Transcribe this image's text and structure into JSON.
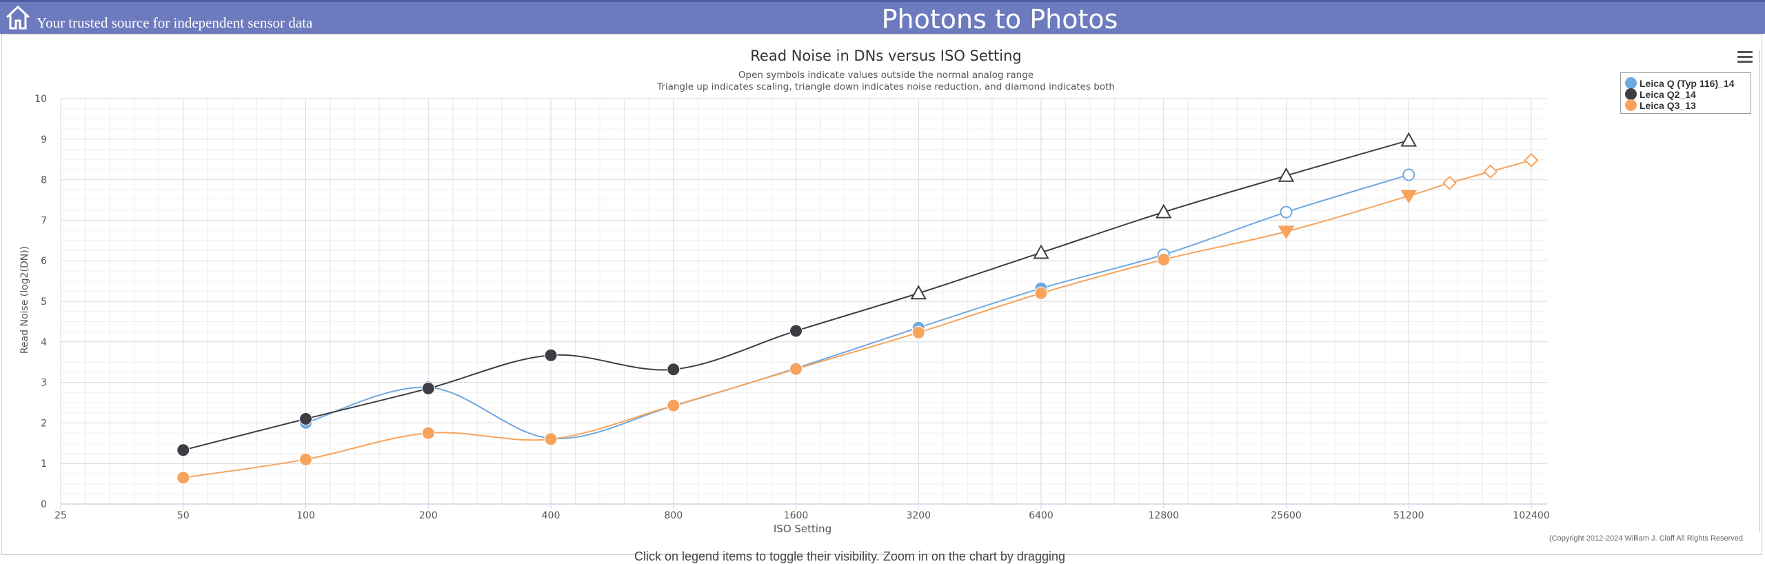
{
  "header": {
    "tagline": "Your trusted source for independent sensor data",
    "site_title": "Photons to Photos"
  },
  "copyright": "(Copyright 2012-2024 William J. Claff All Rights Reserved.",
  "footer_note": "Click on legend items to toggle their visibility. Zoom in on the chart by dragging",
  "chart_data": {
    "type": "line",
    "title": "Read Noise in DNs versus ISO Setting",
    "subtitle": [
      "Open symbols indicate values outside the normal analog range",
      "Triangle up indicates scaling, triangle down indicates noise reduction, and diamond indicates both"
    ],
    "xlabel": "ISO Setting",
    "ylabel": "Read Noise (log2(DN))",
    "x_scale": "log2",
    "x_ticks": [
      25,
      50,
      100,
      200,
      400,
      800,
      1600,
      3200,
      6400,
      12800,
      25600,
      51200,
      102400
    ],
    "ylim": [
      0,
      10
    ],
    "y_ticks": [
      0,
      1,
      2,
      3,
      4,
      5,
      6,
      7,
      8,
      9,
      10
    ],
    "grid": true,
    "legend_position": "top-right",
    "series": [
      {
        "name": "Leica Q (Typ 116)_14",
        "color": "#6fa8e0",
        "points": [
          {
            "x": 100,
            "y": 2.0,
            "marker": "filled-circle"
          },
          {
            "x": 200,
            "y": 2.88,
            "marker": "filled-circle"
          },
          {
            "x": 400,
            "y": 1.62,
            "marker": "filled-circle"
          },
          {
            "x": 800,
            "y": 2.42,
            "marker": "filled-circle"
          },
          {
            "x": 1600,
            "y": 3.35,
            "marker": "filled-circle"
          },
          {
            "x": 3200,
            "y": 4.35,
            "marker": "filled-circle"
          },
          {
            "x": 6400,
            "y": 5.32,
            "marker": "filled-circle"
          },
          {
            "x": 12800,
            "y": 6.15,
            "marker": "open-circle"
          },
          {
            "x": 25600,
            "y": 7.2,
            "marker": "open-circle"
          },
          {
            "x": 51200,
            "y": 8.12,
            "marker": "open-circle"
          }
        ]
      },
      {
        "name": "Leica Q2_14",
        "color": "#3d3d43",
        "points": [
          {
            "x": 50,
            "y": 1.33,
            "marker": "filled-circle"
          },
          {
            "x": 100,
            "y": 2.1,
            "marker": "filled-circle"
          },
          {
            "x": 200,
            "y": 2.85,
            "marker": "filled-circle"
          },
          {
            "x": 400,
            "y": 3.67,
            "marker": "filled-circle"
          },
          {
            "x": 800,
            "y": 3.32,
            "marker": "filled-circle"
          },
          {
            "x": 1600,
            "y": 4.27,
            "marker": "filled-circle"
          },
          {
            "x": 3200,
            "y": 5.2,
            "marker": "open-triangle-up"
          },
          {
            "x": 6400,
            "y": 6.2,
            "marker": "open-triangle-up"
          },
          {
            "x": 12800,
            "y": 7.2,
            "marker": "open-triangle-up"
          },
          {
            "x": 25600,
            "y": 8.1,
            "marker": "open-triangle-up"
          },
          {
            "x": 51200,
            "y": 8.97,
            "marker": "open-triangle-up"
          }
        ]
      },
      {
        "name": "Leica Q3_13",
        "color": "#f7a35c",
        "points": [
          {
            "x": 50,
            "y": 0.65,
            "marker": "filled-circle"
          },
          {
            "x": 100,
            "y": 1.1,
            "marker": "filled-circle"
          },
          {
            "x": 200,
            "y": 1.75,
            "marker": "filled-circle"
          },
          {
            "x": 400,
            "y": 1.6,
            "marker": "filled-circle"
          },
          {
            "x": 800,
            "y": 2.43,
            "marker": "filled-circle"
          },
          {
            "x": 1600,
            "y": 3.33,
            "marker": "filled-circle"
          },
          {
            "x": 3200,
            "y": 4.23,
            "marker": "filled-circle"
          },
          {
            "x": 6400,
            "y": 5.2,
            "marker": "filled-circle"
          },
          {
            "x": 12800,
            "y": 6.03,
            "marker": "filled-circle"
          },
          {
            "x": 25600,
            "y": 6.72,
            "marker": "filled-triangle-down"
          },
          {
            "x": 51200,
            "y": 7.6,
            "marker": "filled-triangle-down"
          },
          {
            "x": 64508,
            "y": 7.92,
            "marker": "open-diamond"
          },
          {
            "x": 81275,
            "y": 8.2,
            "marker": "open-diamond"
          },
          {
            "x": 102400,
            "y": 8.48,
            "marker": "open-diamond"
          }
        ]
      }
    ]
  }
}
